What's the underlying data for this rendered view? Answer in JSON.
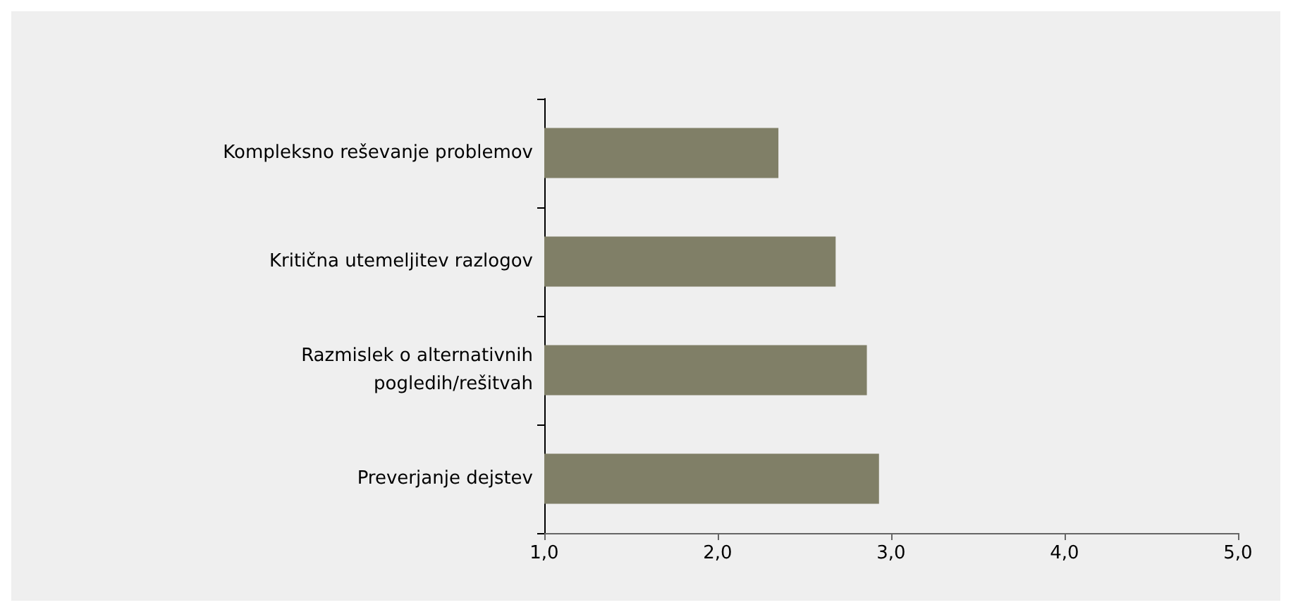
{
  "chart_data": {
    "type": "bar",
    "orientation": "horizontal",
    "categories": [
      "Kompleksno reševanje problemov",
      "Kritična utemeljitev razlogov",
      "Razmislek o alternativnih\npogledih/rešitvah",
      "Preverjanje dejstev"
    ],
    "values": [
      2.35,
      2.68,
      2.86,
      2.93
    ],
    "color": "#807f67",
    "xlim": [
      1,
      5
    ],
    "xticks": [
      {
        "value": 1,
        "label": "1,0"
      },
      {
        "value": 2,
        "label": "2,0"
      },
      {
        "value": 3,
        "label": "3,0"
      },
      {
        "value": 4,
        "label": "4,0"
      },
      {
        "value": 5,
        "label": "5,0"
      }
    ],
    "grid": false
  }
}
